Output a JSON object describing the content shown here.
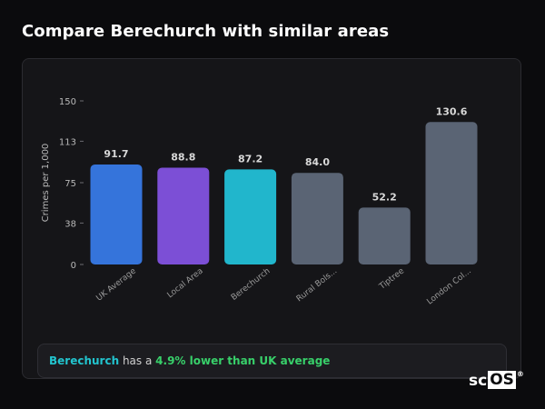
{
  "title": "Compare Berechurch with similar areas",
  "summary": {
    "area": "Berechurch",
    "middle": "has a",
    "comparison": "4.9% lower than UK average"
  },
  "brand": {
    "part1": "sc",
    "part2": "OS",
    "mark": "®"
  },
  "colors": {
    "uk": "#3574db",
    "local": "#7c4fd6",
    "selected": "#21b6cc",
    "other": "#5a6474",
    "summary_area": "#22c5cf",
    "summary_comparison": "#38d06a"
  },
  "chart_data": {
    "type": "bar",
    "ylabel": "Crimes per 1,000",
    "ylim": [
      0,
      150
    ],
    "yticks": [
      0,
      38,
      75,
      113,
      150
    ],
    "grid": false,
    "categories": [
      "UK Average",
      "Local Area",
      "Berechurch",
      "Rural Bols...",
      "Tiptree",
      "London Col..."
    ],
    "values": [
      91.7,
      88.8,
      87.2,
      84.0,
      52.2,
      130.6
    ],
    "value_labels": [
      "91.7",
      "88.8",
      "87.2",
      "84.0",
      "52.2",
      "130.6"
    ],
    "bar_colors": [
      "#3574db",
      "#7c4fd6",
      "#21b6cc",
      "#5a6474",
      "#5a6474",
      "#5a6474"
    ]
  }
}
